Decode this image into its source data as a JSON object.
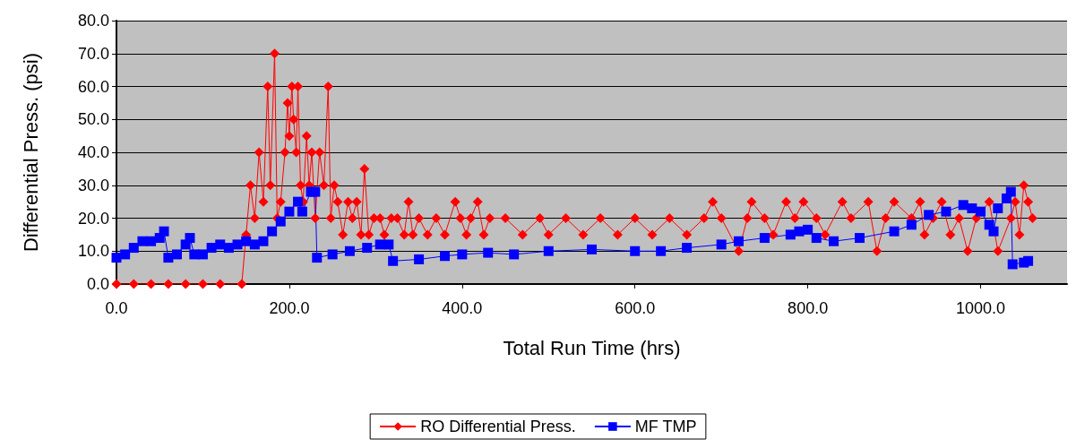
{
  "chart_data": {
    "type": "line",
    "xlabel": "Total Run Time (hrs)",
    "ylabel": "Differential Press. (psi)",
    "xlim": [
      0,
      1100
    ],
    "xticks": [
      {
        "value": 0,
        "label": "0.0"
      },
      {
        "value": 200,
        "label": "200.0"
      },
      {
        "value": 400,
        "label": "400.0"
      },
      {
        "value": 600,
        "label": "600.0"
      },
      {
        "value": 800,
        "label": "800.0"
      },
      {
        "value": 1000,
        "label": "1000.0"
      }
    ],
    "ylim": [
      0,
      80
    ],
    "yticks": [
      {
        "value": 0,
        "label": "0.0"
      },
      {
        "value": 10,
        "label": "10.0"
      },
      {
        "value": 20,
        "label": "20.0"
      },
      {
        "value": 30,
        "label": "30.0"
      },
      {
        "value": 40,
        "label": "40.0"
      },
      {
        "value": 50,
        "label": "50.0"
      },
      {
        "value": 60,
        "label": "60.0"
      },
      {
        "value": 70,
        "label": "70.0"
      },
      {
        "value": 80,
        "label": "80.0"
      }
    ],
    "grid": "y",
    "legend": "bottom",
    "line_style": "solid",
    "series": [
      {
        "name": "RO Differential Press.",
        "color": "#ff0000",
        "marker": "diamond",
        "x": [
          0,
          20,
          40,
          60,
          80,
          100,
          120,
          145,
          150,
          155,
          160,
          165,
          170,
          175,
          178,
          183,
          186,
          190,
          195,
          198,
          200,
          203,
          205,
          208,
          210,
          213,
          216,
          220,
          223,
          226,
          230,
          235,
          240,
          245,
          248,
          252,
          256,
          262,
          268,
          273,
          278,
          283,
          287,
          292,
          298,
          305,
          310,
          318,
          325,
          333,
          338,
          343,
          350,
          360,
          370,
          380,
          392,
          398,
          405,
          410,
          418,
          425,
          432,
          450,
          470,
          490,
          500,
          520,
          540,
          560,
          580,
          600,
          620,
          640,
          660,
          680,
          690,
          700,
          720,
          730,
          735,
          750,
          760,
          775,
          785,
          795,
          810,
          820,
          840,
          850,
          870,
          880,
          890,
          900,
          920,
          930,
          935,
          945,
          955,
          965,
          975,
          985,
          995,
          1010,
          1020,
          1035,
          1040,
          1045,
          1050,
          1055,
          1060
        ],
        "values": [
          0,
          0,
          0,
          0,
          0,
          0,
          0,
          0,
          15,
          30,
          20,
          40,
          25,
          60,
          30,
          70,
          20,
          25,
          40,
          55,
          45,
          60,
          50,
          40,
          60,
          30,
          25,
          45,
          30,
          40,
          20,
          40,
          30,
          60,
          20,
          30,
          25,
          15,
          25,
          20,
          25,
          15,
          35,
          15,
          20,
          20,
          15,
          20,
          20,
          15,
          25,
          15,
          20,
          15,
          20,
          15,
          25,
          20,
          15,
          20,
          25,
          15,
          20,
          20,
          15,
          20,
          15,
          20,
          15,
          20,
          15,
          20,
          15,
          20,
          15,
          20,
          25,
          20,
          10,
          20,
          25,
          20,
          15,
          25,
          20,
          25,
          20,
          15,
          25,
          20,
          25,
          10,
          20,
          25,
          20,
          25,
          15,
          20,
          25,
          15,
          20,
          10,
          20,
          25,
          10,
          20,
          25,
          15,
          30,
          25,
          20
        ]
      },
      {
        "name": "MF TMP",
        "color": "#0000ff",
        "marker": "square",
        "x": [
          0,
          10,
          20,
          30,
          40,
          50,
          55,
          60,
          70,
          80,
          85,
          90,
          100,
          110,
          120,
          130,
          140,
          150,
          160,
          170,
          180,
          190,
          200,
          210,
          215,
          225,
          230,
          232,
          250,
          270,
          290,
          305,
          315,
          320,
          350,
          380,
          400,
          430,
          460,
          500,
          550,
          600,
          630,
          660,
          700,
          720,
          750,
          780,
          790,
          800,
          810,
          830,
          860,
          900,
          920,
          940,
          960,
          980,
          990,
          1000,
          1010,
          1015,
          1020,
          1030,
          1035,
          1037,
          1050,
          1055
        ],
        "values": [
          8,
          9,
          11,
          13,
          13,
          14,
          16,
          8,
          9,
          12,
          14,
          9,
          9,
          11,
          12,
          11,
          12,
          13,
          12,
          13,
          16,
          19,
          22,
          25,
          22,
          28,
          28,
          8,
          9,
          10,
          11,
          12,
          12,
          7,
          7.5,
          8.5,
          9,
          9.5,
          9,
          10,
          10.5,
          10,
          10,
          11,
          12,
          13,
          14,
          15,
          16,
          16.5,
          14,
          13,
          14,
          16,
          18,
          21,
          22,
          24,
          23,
          22,
          18,
          16,
          23,
          26,
          28,
          6,
          6.5,
          7
        ]
      }
    ]
  }
}
